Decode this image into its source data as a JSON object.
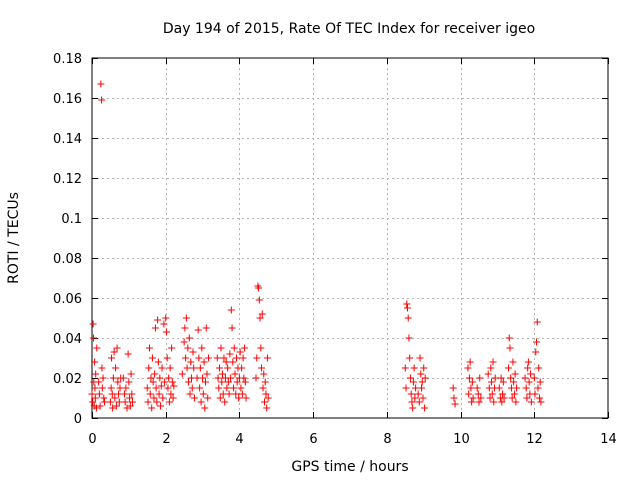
{
  "chart_data": {
    "type": "scatter",
    "title": "Day 194 of 2015, Rate Of TEC Index for receiver igeo",
    "xlabel": "GPS time / hours",
    "ylabel": "ROTI / TECUs",
    "xlim": [
      0,
      14
    ],
    "ylim": [
      0,
      0.18
    ],
    "xticks": [
      0,
      2,
      4,
      6,
      8,
      10,
      12,
      14
    ],
    "xtick_labels": [
      "0",
      "2",
      "4",
      "6",
      "8",
      "10",
      "12",
      "14"
    ],
    "yticks": [
      0,
      0.02,
      0.04,
      0.06,
      0.08,
      0.1,
      0.12,
      0.14,
      0.16,
      0.18
    ],
    "ytick_labels": [
      "0",
      "0.02",
      "0.04",
      "0.06",
      "0.08",
      "0.1",
      "0.12",
      "0.14",
      "0.16",
      "0.18"
    ],
    "grid": true,
    "marker": "+",
    "color": "#ff0000",
    "series": [
      {
        "name": "ROTI",
        "points": [
          [
            0.0,
            0.012
          ],
          [
            0.02,
            0.008
          ],
          [
            0.03,
            0.047
          ],
          [
            0.04,
            0.04
          ],
          [
            0.05,
            0.018
          ],
          [
            0.06,
            0.006
          ],
          [
            0.07,
            0.028
          ],
          [
            0.08,
            0.015
          ],
          [
            0.09,
            0.01
          ],
          [
            0.1,
            0.022
          ],
          [
            0.12,
            0.005
          ],
          [
            0.13,
            0.035
          ],
          [
            0.18,
            0.018
          ],
          [
            0.2,
            0.012
          ],
          [
            0.22,
            0.006
          ],
          [
            0.24,
            0.167
          ],
          [
            0.26,
            0.159
          ],
          [
            0.27,
            0.025
          ],
          [
            0.28,
            0.015
          ],
          [
            0.3,
            0.02
          ],
          [
            0.32,
            0.01
          ],
          [
            0.34,
            0.008
          ],
          [
            0.5,
            0.008
          ],
          [
            0.52,
            0.015
          ],
          [
            0.53,
            0.03
          ],
          [
            0.55,
            0.012
          ],
          [
            0.56,
            0.005
          ],
          [
            0.58,
            0.02
          ],
          [
            0.6,
            0.033
          ],
          [
            0.62,
            0.01
          ],
          [
            0.64,
            0.025
          ],
          [
            0.66,
            0.006
          ],
          [
            0.68,
            0.035
          ],
          [
            0.7,
            0.018
          ],
          [
            0.72,
            0.012
          ],
          [
            0.74,
            0.008
          ],
          [
            0.76,
            0.015
          ],
          [
            0.78,
            0.02
          ],
          [
            0.85,
            0.02
          ],
          [
            0.88,
            0.012
          ],
          [
            0.9,
            0.008
          ],
          [
            0.92,
            0.015
          ],
          [
            0.95,
            0.005
          ],
          [
            0.98,
            0.032
          ],
          [
            1.0,
            0.018
          ],
          [
            1.02,
            0.01
          ],
          [
            1.04,
            0.006
          ],
          [
            1.06,
            0.022
          ],
          [
            1.08,
            0.012
          ],
          [
            1.1,
            0.008
          ],
          [
            1.5,
            0.015
          ],
          [
            1.52,
            0.008
          ],
          [
            1.54,
            0.025
          ],
          [
            1.56,
            0.035
          ],
          [
            1.58,
            0.012
          ],
          [
            1.6,
            0.02
          ],
          [
            1.62,
            0.005
          ],
          [
            1.64,
            0.03
          ],
          [
            1.66,
            0.018
          ],
          [
            1.68,
            0.01
          ],
          [
            1.7,
            0.022
          ],
          [
            1.72,
            0.045
          ],
          [
            1.74,
            0.015
          ],
          [
            1.76,
            0.008
          ],
          [
            1.78,
            0.049
          ],
          [
            1.8,
            0.028
          ],
          [
            1.82,
            0.012
          ],
          [
            1.84,
            0.02
          ],
          [
            1.86,
            0.006
          ],
          [
            1.88,
            0.016
          ],
          [
            1.9,
            0.025
          ],
          [
            1.92,
            0.01
          ],
          [
            1.95,
            0.047
          ],
          [
            1.97,
            0.018
          ],
          [
            2.0,
            0.05
          ],
          [
            2.02,
            0.043
          ],
          [
            2.04,
            0.03
          ],
          [
            2.06,
            0.015
          ],
          [
            2.08,
            0.02
          ],
          [
            2.1,
            0.008
          ],
          [
            2.12,
            0.025
          ],
          [
            2.14,
            0.012
          ],
          [
            2.16,
            0.035
          ],
          [
            2.18,
            0.018
          ],
          [
            2.2,
            0.01
          ],
          [
            2.22,
            0.016
          ],
          [
            2.45,
            0.022
          ],
          [
            2.5,
            0.038
          ],
          [
            2.52,
            0.045
          ],
          [
            2.54,
            0.03
          ],
          [
            2.56,
            0.05
          ],
          [
            2.58,
            0.025
          ],
          [
            2.6,
            0.035
          ],
          [
            2.62,
            0.018
          ],
          [
            2.64,
            0.04
          ],
          [
            2.66,
            0.012
          ],
          [
            2.68,
            0.028
          ],
          [
            2.7,
            0.02
          ],
          [
            2.72,
            0.015
          ],
          [
            2.74,
            0.033
          ],
          [
            2.76,
            0.025
          ],
          [
            2.78,
            0.01
          ],
          [
            2.85,
            0.02
          ],
          [
            2.88,
            0.044
          ],
          [
            2.9,
            0.03
          ],
          [
            2.92,
            0.015
          ],
          [
            2.94,
            0.025
          ],
          [
            2.96,
            0.008
          ],
          [
            2.98,
            0.035
          ],
          [
            3.0,
            0.02
          ],
          [
            3.02,
            0.012
          ],
          [
            3.04,
            0.028
          ],
          [
            3.06,
            0.005
          ],
          [
            3.08,
            0.018
          ],
          [
            3.1,
            0.045
          ],
          [
            3.12,
            0.022
          ],
          [
            3.14,
            0.01
          ],
          [
            3.16,
            0.03
          ],
          [
            3.4,
            0.03
          ],
          [
            3.42,
            0.02
          ],
          [
            3.44,
            0.015
          ],
          [
            3.46,
            0.025
          ],
          [
            3.48,
            0.01
          ],
          [
            3.5,
            0.035
          ],
          [
            3.52,
            0.018
          ],
          [
            3.54,
            0.022
          ],
          [
            3.56,
            0.012
          ],
          [
            3.58,
            0.03
          ],
          [
            3.6,
            0.008
          ],
          [
            3.62,
            0.02
          ],
          [
            3.64,
            0.028
          ],
          [
            3.66,
            0.015
          ],
          [
            3.68,
            0.025
          ],
          [
            3.7,
            0.018
          ],
          [
            3.72,
            0.012
          ],
          [
            3.74,
            0.032
          ],
          [
            3.76,
            0.02
          ],
          [
            3.78,
            0.054
          ],
          [
            3.8,
            0.045
          ],
          [
            3.82,
            0.028
          ],
          [
            3.84,
            0.015
          ],
          [
            3.86,
            0.035
          ],
          [
            3.88,
            0.022
          ],
          [
            3.9,
            0.012
          ],
          [
            3.92,
            0.03
          ],
          [
            3.94,
            0.018
          ],
          [
            3.96,
            0.025
          ],
          [
            3.98,
            0.01
          ],
          [
            4.0,
            0.02
          ],
          [
            4.02,
            0.033
          ],
          [
            4.04,
            0.015
          ],
          [
            4.06,
            0.025
          ],
          [
            4.08,
            0.012
          ],
          [
            4.1,
            0.03
          ],
          [
            4.12,
            0.02
          ],
          [
            4.14,
            0.035
          ],
          [
            4.16,
            0.018
          ],
          [
            4.18,
            0.01
          ],
          [
            4.45,
            0.02
          ],
          [
            4.47,
            0.03
          ],
          [
            4.5,
            0.066
          ],
          [
            4.52,
            0.065
          ],
          [
            4.54,
            0.059
          ],
          [
            4.56,
            0.05
          ],
          [
            4.58,
            0.035
          ],
          [
            4.6,
            0.025
          ],
          [
            4.62,
            0.052
          ],
          [
            4.64,
            0.015
          ],
          [
            4.66,
            0.022
          ],
          [
            4.68,
            0.008
          ],
          [
            4.7,
            0.018
          ],
          [
            4.72,
            0.012
          ],
          [
            4.74,
            0.005
          ],
          [
            4.76,
            0.03
          ],
          [
            4.78,
            0.01
          ],
          [
            8.5,
            0.025
          ],
          [
            8.52,
            0.015
          ],
          [
            8.54,
            0.057
          ],
          [
            8.56,
            0.055
          ],
          [
            8.58,
            0.05
          ],
          [
            8.6,
            0.04
          ],
          [
            8.62,
            0.03
          ],
          [
            8.64,
            0.02
          ],
          [
            8.66,
            0.012
          ],
          [
            8.68,
            0.008
          ],
          [
            8.7,
            0.005
          ],
          [
            8.72,
            0.018
          ],
          [
            8.74,
            0.025
          ],
          [
            8.76,
            0.01
          ],
          [
            8.78,
            0.015
          ],
          [
            8.85,
            0.012
          ],
          [
            8.88,
            0.008
          ],
          [
            8.9,
            0.03
          ],
          [
            8.92,
            0.022
          ],
          [
            8.94,
            0.015
          ],
          [
            8.96,
            0.018
          ],
          [
            8.98,
            0.01
          ],
          [
            9.0,
            0.025
          ],
          [
            9.02,
            0.005
          ],
          [
            9.04,
            0.02
          ],
          [
            9.8,
            0.015
          ],
          [
            9.82,
            0.01
          ],
          [
            9.85,
            0.007
          ],
          [
            10.2,
            0.025
          ],
          [
            10.22,
            0.012
          ],
          [
            10.24,
            0.02
          ],
          [
            10.26,
            0.028
          ],
          [
            10.28,
            0.015
          ],
          [
            10.3,
            0.008
          ],
          [
            10.32,
            0.018
          ],
          [
            10.34,
            0.01
          ],
          [
            10.45,
            0.015
          ],
          [
            10.48,
            0.012
          ],
          [
            10.5,
            0.008
          ],
          [
            10.52,
            0.02
          ],
          [
            10.55,
            0.01
          ],
          [
            10.75,
            0.022
          ],
          [
            10.78,
            0.015
          ],
          [
            10.8,
            0.01
          ],
          [
            10.82,
            0.025
          ],
          [
            10.84,
            0.018
          ],
          [
            10.86,
            0.012
          ],
          [
            10.88,
            0.028
          ],
          [
            10.9,
            0.008
          ],
          [
            10.92,
            0.015
          ],
          [
            10.94,
            0.02
          ],
          [
            11.05,
            0.015
          ],
          [
            11.08,
            0.01
          ],
          [
            11.1,
            0.02
          ],
          [
            11.12,
            0.008
          ],
          [
            11.14,
            0.012
          ],
          [
            11.16,
            0.018
          ],
          [
            11.18,
            0.01
          ],
          [
            11.3,
            0.025
          ],
          [
            11.32,
            0.04
          ],
          [
            11.34,
            0.035
          ],
          [
            11.36,
            0.02
          ],
          [
            11.38,
            0.015
          ],
          [
            11.4,
            0.01
          ],
          [
            11.42,
            0.028
          ],
          [
            11.44,
            0.018
          ],
          [
            11.46,
            0.012
          ],
          [
            11.48,
            0.022
          ],
          [
            11.5,
            0.008
          ],
          [
            11.52,
            0.015
          ],
          [
            11.75,
            0.02
          ],
          [
            11.78,
            0.015
          ],
          [
            11.8,
            0.01
          ],
          [
            11.82,
            0.025
          ],
          [
            11.84,
            0.028
          ],
          [
            11.86,
            0.018
          ],
          [
            11.88,
            0.012
          ],
          [
            11.9,
            0.022
          ],
          [
            11.92,
            0.008
          ],
          [
            12.0,
            0.02
          ],
          [
            12.02,
            0.012
          ],
          [
            12.04,
            0.033
          ],
          [
            12.06,
            0.038
          ],
          [
            12.08,
            0.048
          ],
          [
            12.1,
            0.015
          ],
          [
            12.12,
            0.025
          ],
          [
            12.14,
            0.01
          ],
          [
            12.16,
            0.018
          ],
          [
            12.18,
            0.008
          ]
        ]
      }
    ]
  }
}
